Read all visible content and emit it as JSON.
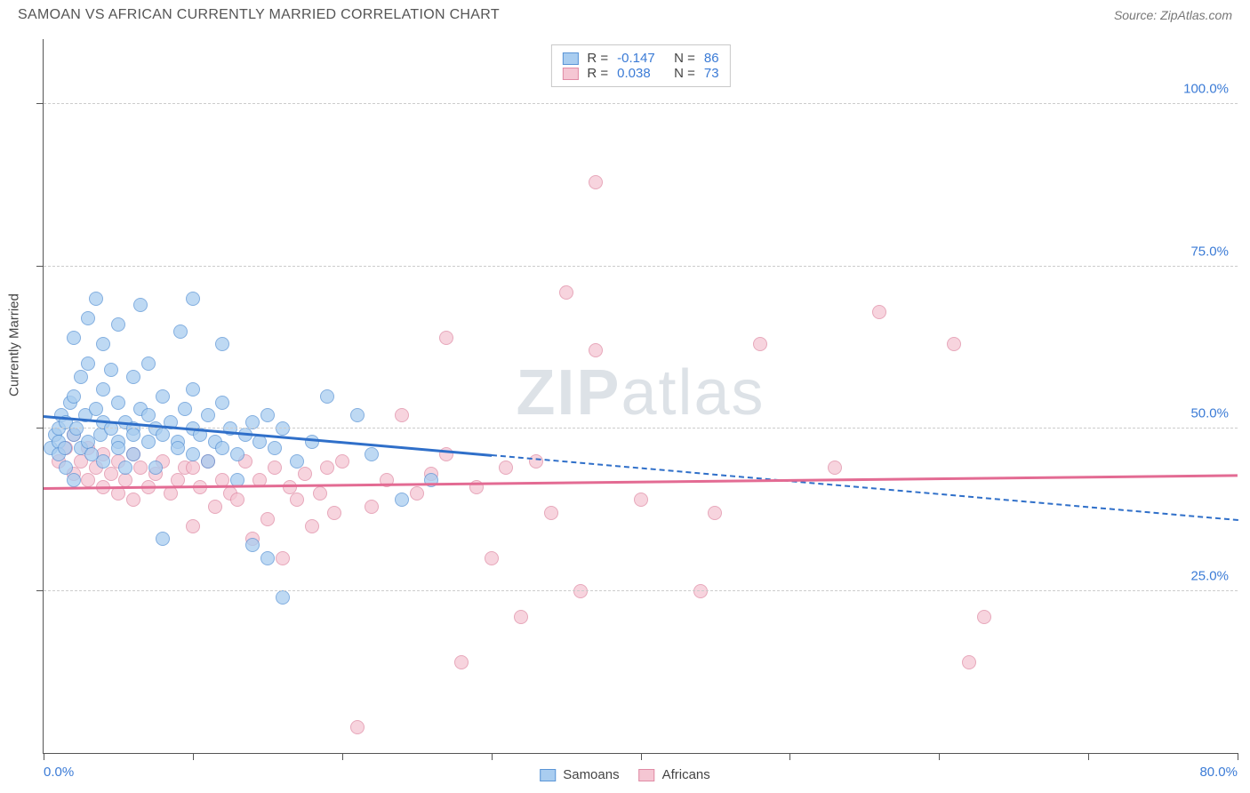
{
  "title": "SAMOAN VS AFRICAN CURRENTLY MARRIED CORRELATION CHART",
  "source": "Source: ZipAtlas.com",
  "ylabel": "Currently Married",
  "watermark": {
    "left": "ZIP",
    "right": "atlas"
  },
  "chart": {
    "type": "scatter",
    "background_color": "#ffffff",
    "grid_color": "#cccccc",
    "axis_color": "#555555",
    "xlim": [
      0,
      80
    ],
    "ylim": [
      0,
      110
    ],
    "x_ticks": [
      0,
      10,
      20,
      30,
      40,
      50,
      60,
      70,
      80
    ],
    "y_gridlines": [
      25,
      50,
      75,
      100
    ],
    "y_tick_labels": [
      "25.0%",
      "50.0%",
      "75.0%",
      "100.0%"
    ],
    "y_tick_color": "#3b7bd6",
    "x_min_label": "0.0%",
    "x_max_label": "80.0%",
    "x_label_color": "#3b7bd6",
    "marker_size": 16,
    "marker_opacity": 0.75,
    "line_width_solid": 3,
    "line_width_dash": 2
  },
  "series": {
    "samoans": {
      "label": "Samoans",
      "fill": "#a9cdf0",
      "stroke": "#5b95d6",
      "R": "-0.147",
      "N": "86",
      "trend": {
        "y_at_x0": 52,
        "y_at_xmax": 36,
        "solid_until_x": 30
      },
      "points": [
        [
          0.5,
          47
        ],
        [
          0.8,
          49
        ],
        [
          1,
          48
        ],
        [
          1,
          50
        ],
        [
          1,
          46
        ],
        [
          1.2,
          52
        ],
        [
          1.4,
          47
        ],
        [
          1.5,
          51
        ],
        [
          1.5,
          44
        ],
        [
          1.8,
          54
        ],
        [
          2,
          49
        ],
        [
          2,
          55
        ],
        [
          2,
          42
        ],
        [
          2,
          64
        ],
        [
          2.2,
          50
        ],
        [
          2.5,
          47
        ],
        [
          2.5,
          58
        ],
        [
          2.8,
          52
        ],
        [
          3,
          48
        ],
        [
          3,
          60
        ],
        [
          3,
          67
        ],
        [
          3.2,
          46
        ],
        [
          3.5,
          53
        ],
        [
          3.5,
          70
        ],
        [
          3.8,
          49
        ],
        [
          4,
          51
        ],
        [
          4,
          45
        ],
        [
          4,
          56
        ],
        [
          4,
          63
        ],
        [
          4.5,
          50
        ],
        [
          4.5,
          59
        ],
        [
          5,
          48
        ],
        [
          5,
          54
        ],
        [
          5,
          47
        ],
        [
          5,
          66
        ],
        [
          5.5,
          51
        ],
        [
          5.5,
          44
        ],
        [
          6,
          50
        ],
        [
          6,
          49
        ],
        [
          6,
          58
        ],
        [
          6,
          46
        ],
        [
          6.5,
          53
        ],
        [
          6.5,
          69
        ],
        [
          7,
          48
        ],
        [
          7,
          52
        ],
        [
          7,
          60
        ],
        [
          7.5,
          50
        ],
        [
          7.5,
          44
        ],
        [
          8,
          49
        ],
        [
          8,
          55
        ],
        [
          8,
          33
        ],
        [
          8.5,
          51
        ],
        [
          9,
          48
        ],
        [
          9,
          47
        ],
        [
          9.2,
          65
        ],
        [
          9.5,
          53
        ],
        [
          10,
          50
        ],
        [
          10,
          46
        ],
        [
          10,
          56
        ],
        [
          10,
          70
        ],
        [
          10.5,
          49
        ],
        [
          11,
          52
        ],
        [
          11,
          45
        ],
        [
          11.5,
          48
        ],
        [
          12,
          47
        ],
        [
          12,
          54
        ],
        [
          12,
          63
        ],
        [
          12.5,
          50
        ],
        [
          13,
          46
        ],
        [
          13,
          42
        ],
        [
          13.5,
          49
        ],
        [
          14,
          32
        ],
        [
          14,
          51
        ],
        [
          14.5,
          48
        ],
        [
          15,
          30
        ],
        [
          15,
          52
        ],
        [
          15.5,
          47
        ],
        [
          16,
          24
        ],
        [
          16,
          50
        ],
        [
          17,
          45
        ],
        [
          18,
          48
        ],
        [
          19,
          55
        ],
        [
          21,
          52
        ],
        [
          22,
          46
        ],
        [
          24,
          39
        ],
        [
          26,
          42
        ]
      ]
    },
    "africans": {
      "label": "Africans",
      "fill": "#f5c6d3",
      "stroke": "#e08ba5",
      "R": "0.038",
      "N": "73",
      "trend": {
        "y_at_x0": 41,
        "y_at_xmax": 43,
        "solid_until_x": 80
      },
      "points": [
        [
          1,
          45
        ],
        [
          1.5,
          47
        ],
        [
          2,
          43
        ],
        [
          2,
          49
        ],
        [
          2.5,
          45
        ],
        [
          3,
          42
        ],
        [
          3,
          47
        ],
        [
          3.5,
          44
        ],
        [
          4,
          46
        ],
        [
          4,
          41
        ],
        [
          4.5,
          43
        ],
        [
          5,
          45
        ],
        [
          5,
          40
        ],
        [
          5.5,
          42
        ],
        [
          6,
          46
        ],
        [
          6,
          39
        ],
        [
          6.5,
          44
        ],
        [
          7,
          41
        ],
        [
          7.5,
          43
        ],
        [
          8,
          45
        ],
        [
          8.5,
          40
        ],
        [
          9,
          42
        ],
        [
          9.5,
          44
        ],
        [
          10,
          44
        ],
        [
          10,
          35
        ],
        [
          10.5,
          41
        ],
        [
          11,
          45
        ],
        [
          11.5,
          38
        ],
        [
          12,
          42
        ],
        [
          12.5,
          40
        ],
        [
          13,
          39
        ],
        [
          13.5,
          45
        ],
        [
          14,
          33
        ],
        [
          14.5,
          42
        ],
        [
          15,
          36
        ],
        [
          15.5,
          44
        ],
        [
          16,
          30
        ],
        [
          16.5,
          41
        ],
        [
          17,
          39
        ],
        [
          17.5,
          43
        ],
        [
          18,
          35
        ],
        [
          18.5,
          40
        ],
        [
          19,
          44
        ],
        [
          19.5,
          37
        ],
        [
          20,
          45
        ],
        [
          21,
          4
        ],
        [
          22,
          38
        ],
        [
          23,
          42
        ],
        [
          24,
          52
        ],
        [
          25,
          40
        ],
        [
          26,
          43
        ],
        [
          27,
          46
        ],
        [
          27,
          64
        ],
        [
          28,
          14
        ],
        [
          29,
          41
        ],
        [
          30,
          30
        ],
        [
          31,
          44
        ],
        [
          32,
          21
        ],
        [
          33,
          45
        ],
        [
          34,
          37
        ],
        [
          35,
          71
        ],
        [
          36,
          25
        ],
        [
          37,
          62
        ],
        [
          37,
          88
        ],
        [
          40,
          39
        ],
        [
          44,
          25
        ],
        [
          45,
          37
        ],
        [
          48,
          63
        ],
        [
          53,
          44
        ],
        [
          56,
          68
        ],
        [
          61,
          63
        ],
        [
          62,
          14
        ],
        [
          63,
          21
        ]
      ]
    }
  },
  "legend_bottom": [
    {
      "key": "samoans"
    },
    {
      "key": "africans"
    }
  ]
}
